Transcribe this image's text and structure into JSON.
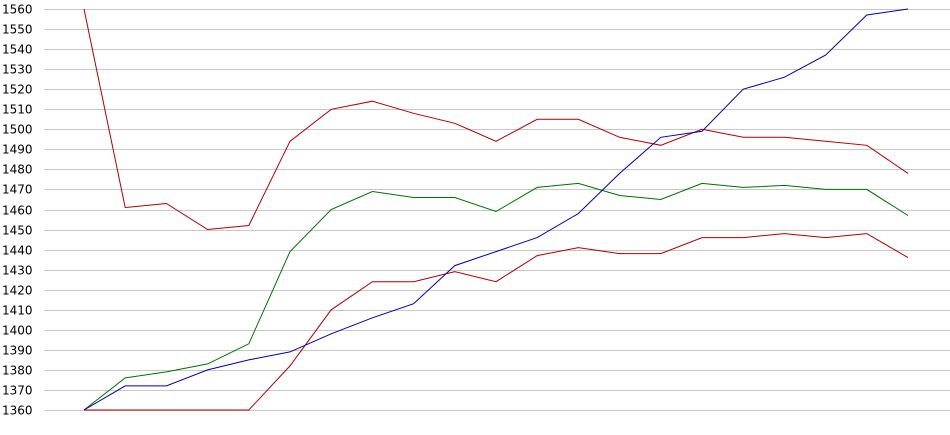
{
  "chart_data": {
    "type": "line",
    "title": "",
    "xlabel": "",
    "ylabel": "",
    "x": [
      1,
      2,
      3,
      4,
      5,
      6,
      7,
      8,
      9,
      10,
      11,
      12,
      13,
      14,
      15,
      16,
      17,
      18,
      19,
      20,
      21
    ],
    "ylim": [
      1360,
      1560
    ],
    "yticks": [
      1360,
      1370,
      1380,
      1390,
      1400,
      1410,
      1420,
      1430,
      1440,
      1450,
      1460,
      1470,
      1480,
      1490,
      1500,
      1510,
      1520,
      1530,
      1540,
      1550,
      1560
    ],
    "grid": true,
    "series": [
      {
        "color": "#b00000",
        "values": [
          1560,
          1461,
          1463,
          1450,
          1452,
          1494,
          1510,
          1514,
          1508,
          1503,
          1494,
          1505,
          1505,
          1496,
          1492,
          1500,
          1496,
          1496,
          1494,
          1492,
          1478
        ]
      },
      {
        "color": "#007000",
        "values": [
          1360,
          1376,
          1379,
          1383,
          1393,
          1439,
          1460,
          1469,
          1466,
          1466,
          1459,
          1471,
          1473,
          1467,
          1465,
          1473,
          1471,
          1472,
          1470,
          1470,
          1457
        ]
      },
      {
        "color": "#b00000",
        "values": [
          1360,
          1360,
          1360,
          1360,
          1360,
          1382,
          1410,
          1424,
          1424,
          1429,
          1424,
          1437,
          1441,
          1438,
          1438,
          1446,
          1446,
          1448,
          1446,
          1448,
          1436
        ]
      },
      {
        "color": "#0000b0",
        "values": [
          1360,
          1372,
          1372,
          1380,
          1385,
          1389,
          1398,
          1406,
          1413,
          1432,
          1439,
          1446,
          1458,
          1478,
          1496,
          1499,
          1520,
          1526,
          1537,
          1557,
          1560
        ]
      }
    ]
  },
  "style": {
    "grid_color": "#c8c8c8",
    "background": "#ffffff"
  }
}
